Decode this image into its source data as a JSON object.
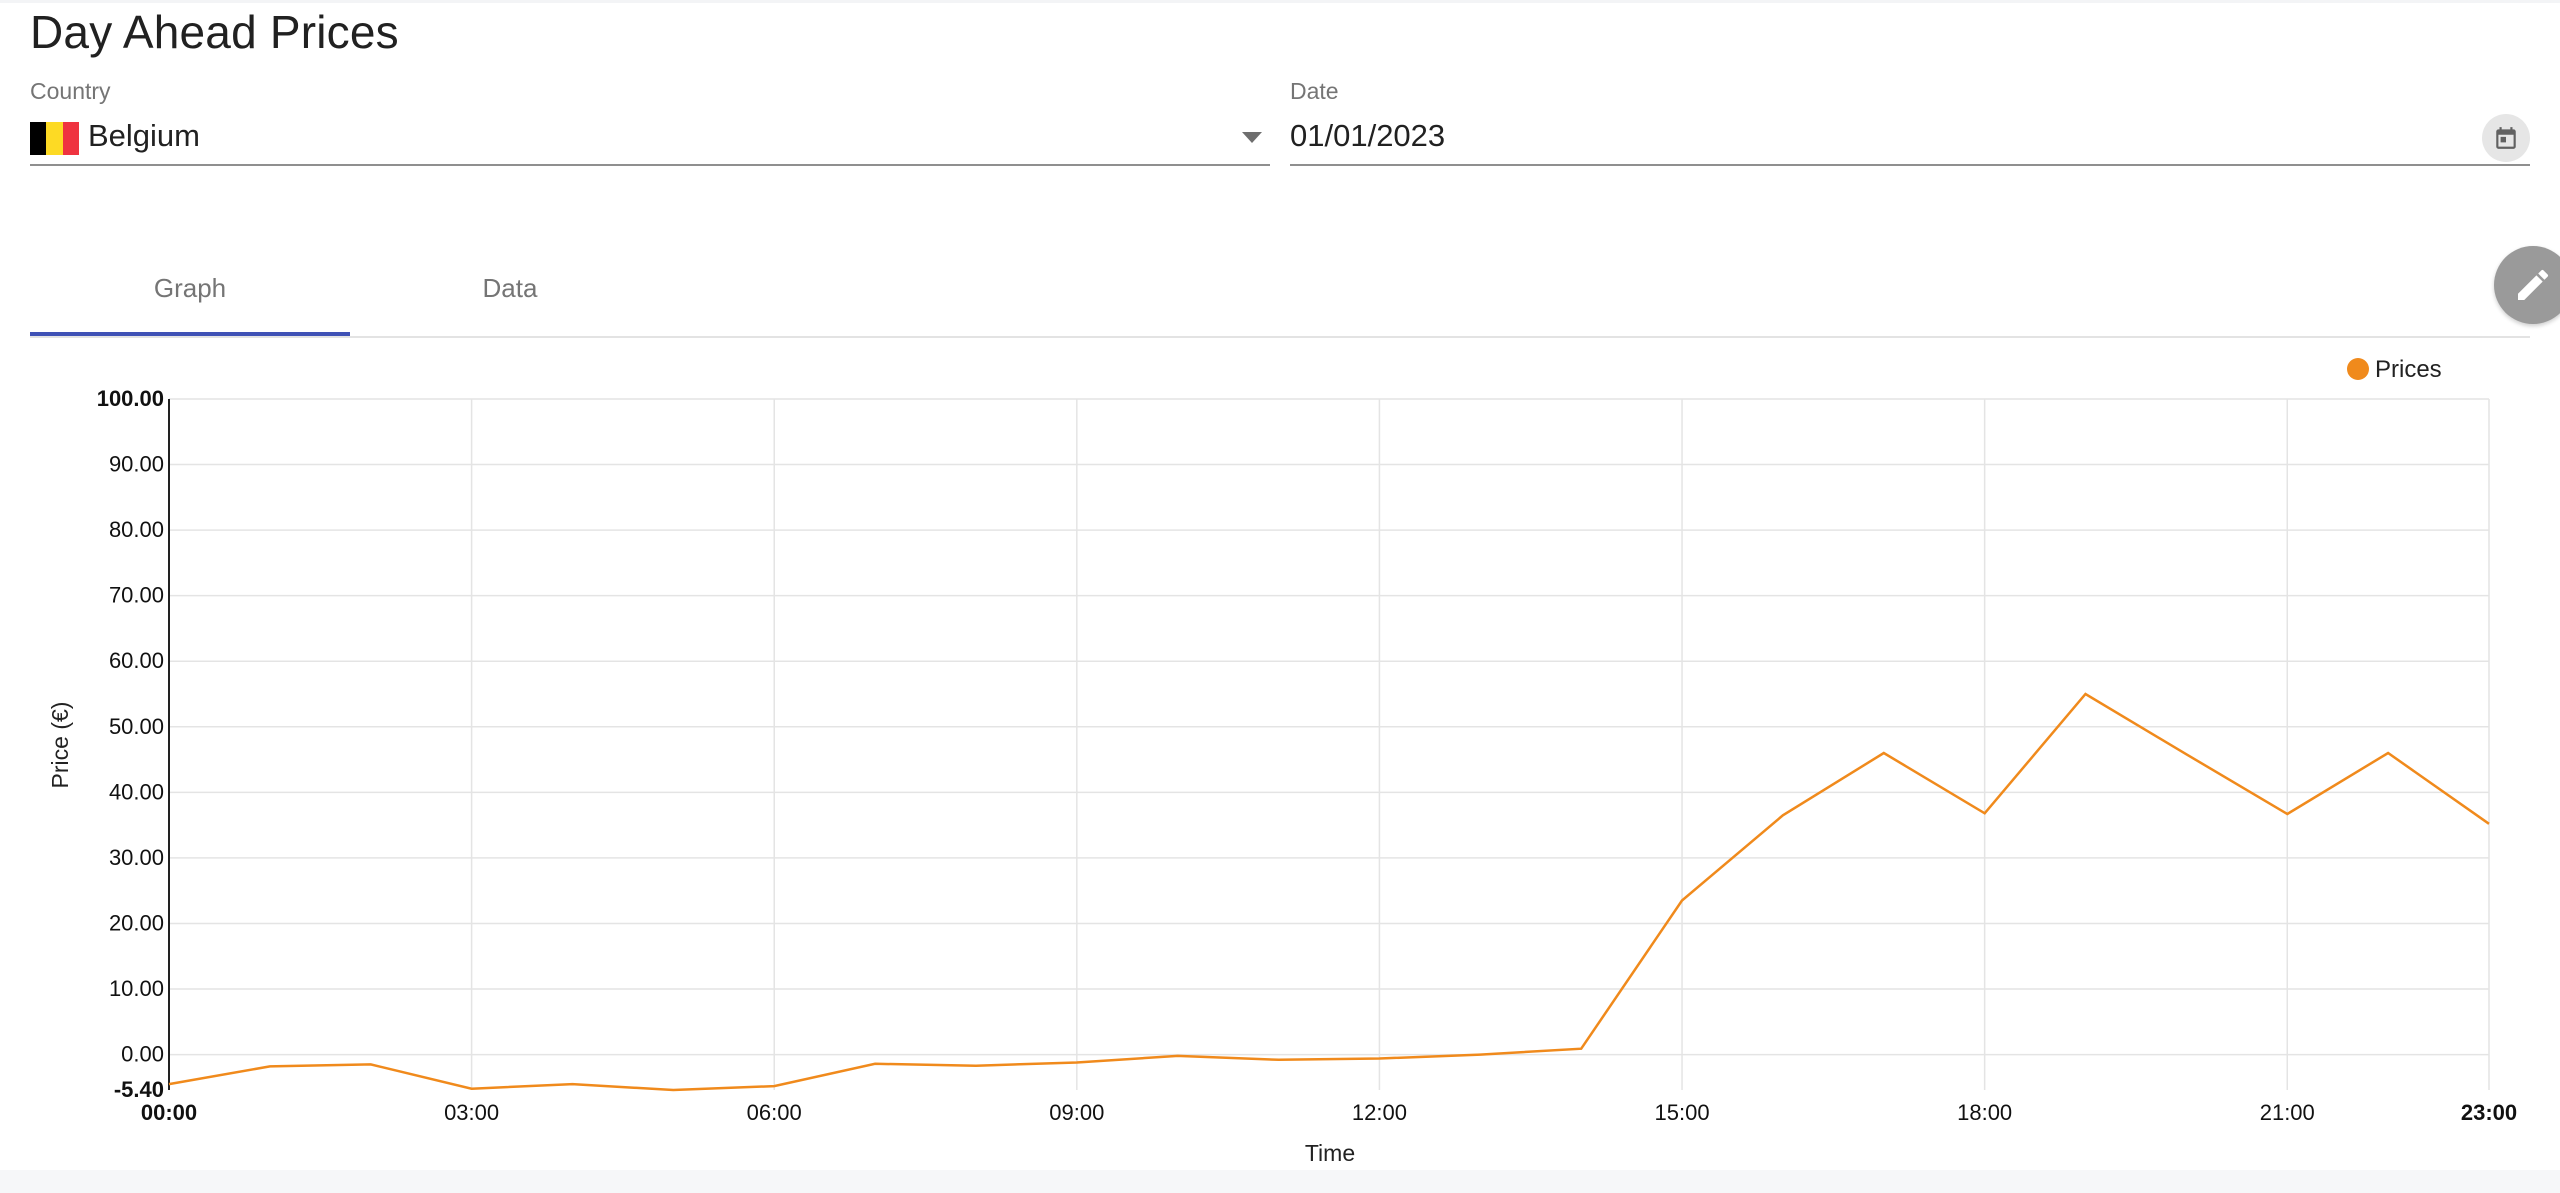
{
  "page": {
    "title": "Day Ahead Prices"
  },
  "filters": {
    "country": {
      "label": "Country",
      "value": "Belgium",
      "flag_colors": [
        "#000000",
        "#fdda24",
        "#ef3340"
      ],
      "icon": "chevron-down-icon"
    },
    "date": {
      "label": "Date",
      "value": "01/01/2023",
      "icon": "calendar-icon"
    }
  },
  "tabs": [
    {
      "label": "Graph",
      "active": true
    },
    {
      "label": "Data",
      "active": false
    }
  ],
  "edit_button": {
    "icon": "pencil-icon"
  },
  "chart_data": {
    "type": "line",
    "title": "",
    "xlabel": "Time",
    "ylabel": "Price (€)",
    "legend": {
      "position": "top-right",
      "entries": [
        "Prices"
      ]
    },
    "colors": {
      "Prices": "#f08a1c"
    },
    "x": [
      "00:00",
      "01:00",
      "02:00",
      "03:00",
      "04:00",
      "05:00",
      "06:00",
      "07:00",
      "08:00",
      "09:00",
      "10:00",
      "11:00",
      "12:00",
      "13:00",
      "14:00",
      "15:00",
      "16:00",
      "17:00",
      "18:00",
      "19:00",
      "20:00",
      "21:00",
      "22:00",
      "23:00"
    ],
    "series": [
      {
        "name": "Prices",
        "values": [
          -4.5,
          -1.8,
          -1.5,
          -5.2,
          -4.5,
          -5.4,
          -4.8,
          -1.4,
          -1.7,
          -1.2,
          -0.2,
          -0.8,
          -0.6,
          0.0,
          0.9,
          23.5,
          36.5,
          46.0,
          36.8,
          55.0,
          45.8,
          36.7,
          46.0,
          35.2
        ]
      }
    ],
    "yticks": [
      "100.00",
      "90.00",
      "80.00",
      "70.00",
      "60.00",
      "50.00",
      "40.00",
      "30.00",
      "20.00",
      "10.00",
      "0.00",
      "-5.40"
    ],
    "ylim": [
      -5.4,
      100
    ],
    "xticks": [
      "00:00",
      "03:00",
      "06:00",
      "09:00",
      "12:00",
      "15:00",
      "18:00",
      "21:00",
      "23:00"
    ],
    "grid": true
  }
}
